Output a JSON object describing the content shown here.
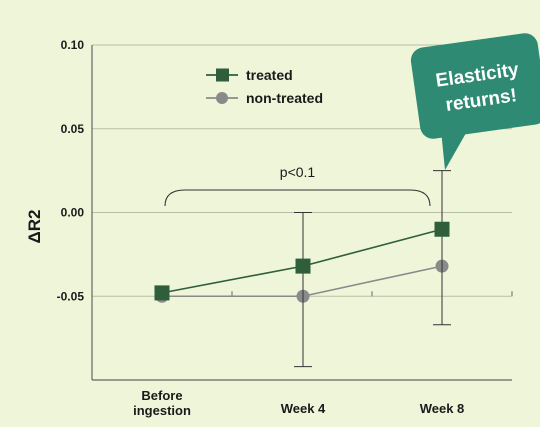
{
  "chart_data": {
    "type": "line",
    "categories": [
      "Before\ningestion",
      "Week 4",
      "Week 8"
    ],
    "x_tick_lines": [
      [
        "Before",
        "ingestion"
      ],
      [
        "Week 4"
      ],
      [
        "Week 8"
      ]
    ],
    "ylabel": "ΔR2",
    "ylim": [
      -0.1,
      0.1
    ],
    "y_ticks": [
      0.1,
      0.05,
      0.0,
      -0.05
    ],
    "y_tick_labels": [
      "0.10",
      "0.05",
      "0.00",
      "-0.05"
    ],
    "grid": true,
    "legend_position": "top-center",
    "series": [
      {
        "name": "treated",
        "values": [
          -0.048,
          -0.032,
          -0.01
        ],
        "color": "#2E5E3A",
        "marker": "square",
        "error_bars": [
          null,
          {
            "low": -0.092,
            "high": 0.0
          },
          {
            "low": -0.067,
            "high": 0.025
          }
        ]
      },
      {
        "name": "non-treated",
        "values": [
          -0.05,
          -0.05,
          -0.032
        ],
        "color": "#8A8A8A",
        "marker": "circle",
        "error_bars": [
          null,
          null,
          null
        ]
      }
    ],
    "annotations": {
      "p_value": "p<0.1",
      "bracket_from": 0,
      "bracket_to": 2
    }
  },
  "badge": {
    "line1": "Elasticity",
    "line2": "returns!",
    "color": "#2E8A72"
  },
  "colors": {
    "background": "#EEF5D9",
    "axis": "#666666",
    "grid": "#B9BFA6",
    "text": "#1A1A1A"
  }
}
